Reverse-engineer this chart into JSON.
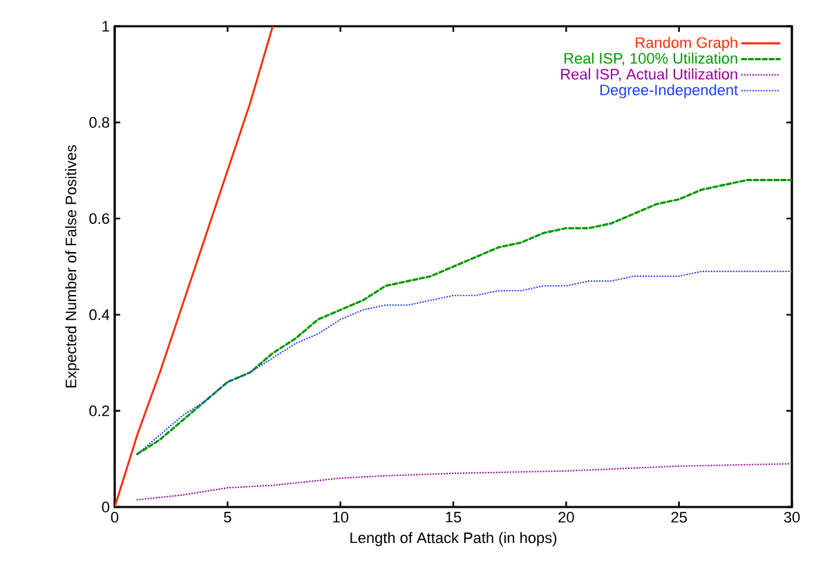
{
  "chart_data": {
    "type": "line",
    "xlabel": "Length of Attack Path (in hops)",
    "ylabel": "Expected Number of False Positives",
    "xlim": [
      0,
      30
    ],
    "ylim": [
      0,
      1
    ],
    "xticks": [
      0,
      5,
      10,
      15,
      20,
      25,
      30
    ],
    "yticks": [
      0,
      0.2,
      0.4,
      0.6,
      0.8,
      1
    ],
    "legend": "top right",
    "marker": "none",
    "grid": false,
    "series": [
      {
        "name": "Random Graph",
        "color": "#ff2a0a",
        "line_style": "solid",
        "x": [
          0,
          1,
          2,
          3,
          4,
          5,
          5.5,
          6,
          7
        ],
        "values": [
          0,
          0.15,
          0.28,
          0.42,
          0.56,
          0.7,
          0.77,
          0.84,
          1.0
        ]
      },
      {
        "name": "Real ISP, 100% Utilization",
        "color": "#009900",
        "line_style": "dashed",
        "x": [
          1,
          2,
          3,
          4,
          5,
          6,
          7,
          8,
          9,
          10,
          11,
          12,
          13,
          14,
          15,
          16,
          17,
          18,
          19,
          20,
          21,
          22,
          23,
          24,
          25,
          26,
          27,
          28,
          29,
          30
        ],
        "values": [
          0.11,
          0.14,
          0.18,
          0.22,
          0.26,
          0.28,
          0.32,
          0.35,
          0.39,
          0.41,
          0.43,
          0.46,
          0.47,
          0.48,
          0.5,
          0.52,
          0.54,
          0.55,
          0.57,
          0.58,
          0.58,
          0.59,
          0.61,
          0.63,
          0.64,
          0.66,
          0.67,
          0.68,
          0.68,
          0.68
        ]
      },
      {
        "name": "Real ISP, Actual Utilization",
        "color": "#990099",
        "line_style": "dotted",
        "x": [
          1,
          3,
          5,
          7,
          10,
          12,
          15,
          20,
          25,
          30
        ],
        "values": [
          0.015,
          0.025,
          0.04,
          0.045,
          0.06,
          0.065,
          0.07,
          0.075,
          0.085,
          0.09
        ]
      },
      {
        "name": "Degree-Independent",
        "color": "#1f3fff",
        "line_style": "dotted",
        "x": [
          1,
          2,
          3,
          4,
          5,
          6,
          7,
          8,
          9,
          10,
          11,
          12,
          13,
          14,
          15,
          16,
          17,
          18,
          19,
          20,
          21,
          22,
          23,
          24,
          25,
          26,
          27,
          28,
          29,
          30
        ],
        "values": [
          0.11,
          0.15,
          0.19,
          0.22,
          0.26,
          0.28,
          0.31,
          0.34,
          0.36,
          0.39,
          0.41,
          0.42,
          0.42,
          0.43,
          0.44,
          0.44,
          0.45,
          0.45,
          0.46,
          0.46,
          0.47,
          0.47,
          0.48,
          0.48,
          0.48,
          0.49,
          0.49,
          0.49,
          0.49,
          0.49
        ]
      }
    ]
  }
}
